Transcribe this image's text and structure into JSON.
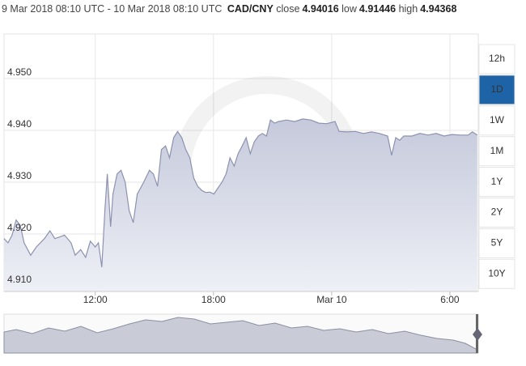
{
  "header": {
    "range": "9 Mar 2018 08:10 UTC - 10 Mar 2018 08:10 UTC",
    "pair": "CAD/CNY",
    "close_label": "close",
    "close": 4.94016,
    "low_label": "low",
    "low": 4.91446,
    "high_label": "high",
    "high": 4.94368
  },
  "buttons": [
    "12h",
    "1D",
    "1W",
    "1M",
    "1Y",
    "2Y",
    "5Y",
    "10Y"
  ],
  "active_button": 1,
  "chart_data": {
    "type": "area",
    "x": [
      7.37,
      7.57,
      7.78,
      7.98,
      8.19,
      8.39,
      8.72,
      9.01,
      9.42,
      9.7,
      9.95,
      10.24,
      10.44,
      10.77,
      10.98,
      11.26,
      11.51,
      11.75,
      12.0,
      12.16,
      12.33,
      12.49,
      12.61,
      12.78,
      12.9,
      13.11,
      13.31,
      13.52,
      13.72,
      13.93,
      14.13,
      14.46,
      14.75,
      14.95,
      15.16,
      15.36,
      15.57,
      15.77,
      15.98,
      16.18,
      16.39,
      16.59,
      16.8,
      17.0,
      17.2,
      17.41,
      17.61,
      17.82,
      18.02,
      18.23,
      18.43,
      18.64,
      18.84,
      19.05,
      19.25,
      19.46,
      19.66,
      19.87,
      20.07,
      20.28,
      20.48,
      20.69,
      20.89,
      21.1,
      21.3,
      21.71,
      22.12,
      22.53,
      22.94,
      23.35,
      23.76,
      24.17,
      24.38,
      24.79,
      25.2,
      25.61,
      26.02,
      26.43,
      26.84,
      27.04,
      27.25,
      27.45,
      27.66,
      28.07,
      28.48,
      28.89,
      29.3,
      29.7,
      30.11,
      30.52,
      30.93,
      31.14,
      31.39
    ],
    "values": [
      4.9191,
      4.9183,
      4.9198,
      4.9227,
      4.9217,
      4.9183,
      4.9159,
      4.9175,
      4.9191,
      4.9206,
      4.9191,
      4.9195,
      4.9198,
      4.9183,
      4.9159,
      4.917,
      4.9155,
      4.9186,
      4.9175,
      4.9183,
      4.9136,
      4.9245,
      4.9316,
      4.9214,
      4.9277,
      4.9316,
      4.9323,
      4.93,
      4.9245,
      4.9222,
      4.9277,
      4.93,
      4.9323,
      4.9316,
      4.9292,
      4.9363,
      4.937,
      4.9347,
      4.9386,
      4.9398,
      4.9386,
      4.9363,
      4.9347,
      4.9308,
      4.9292,
      4.9284,
      4.928,
      4.9281,
      4.9277,
      4.9289,
      4.93,
      4.9316,
      4.9347,
      4.9331,
      4.9355,
      4.937,
      4.9386,
      4.9355,
      4.9378,
      4.9389,
      4.9394,
      4.9389,
      4.942,
      4.9414,
      4.9417,
      4.942,
      4.9417,
      4.9422,
      4.942,
      4.9414,
      4.9413,
      4.9417,
      4.9398,
      4.9397,
      4.9398,
      4.9394,
      4.9397,
      4.9394,
      4.9389,
      4.9352,
      4.9386,
      4.9381,
      4.9389,
      4.9389,
      4.9394,
      4.9391,
      4.9394,
      4.9389,
      4.9392,
      4.9391,
      4.9391,
      4.9397,
      4.9391
    ],
    "color": "#8c92b0",
    "xlim": [
      7.37,
      31.44
    ],
    "xticks": [
      {
        "value": 12,
        "label": "12:00"
      },
      {
        "value": 18,
        "label": "18:00"
      },
      {
        "value": 24,
        "label": "Mar 10"
      },
      {
        "value": 30,
        "label": "6:00"
      }
    ],
    "ylim": [
      4.9089,
      4.9586
    ],
    "yticks": [
      {
        "value": 4.91,
        "label": "4.910"
      },
      {
        "value": 4.92,
        "label": "4.920"
      },
      {
        "value": 4.93,
        "label": "4.930"
      },
      {
        "value": 4.94,
        "label": "4.940"
      },
      {
        "value": 4.95,
        "label": "4.950"
      }
    ],
    "grid": true
  }
}
